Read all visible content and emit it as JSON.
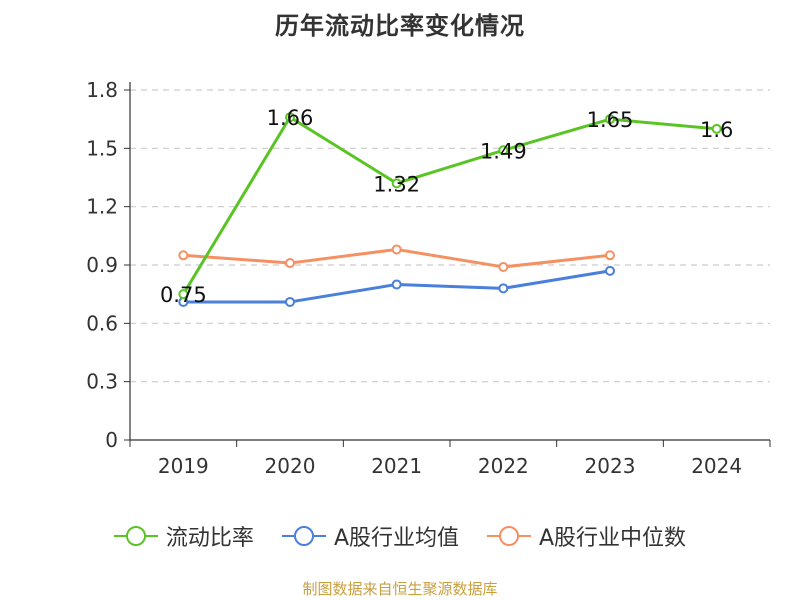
{
  "title": "历年流动比率变化情况",
  "source": "制图数据来自恒生聚源数据库",
  "colors": {
    "source_text": "#c8a040"
  },
  "chart_data": {
    "type": "line",
    "title": "历年流动比率变化情况",
    "xlabel": "",
    "ylabel": "",
    "categories": [
      "2019",
      "2020",
      "2021",
      "2022",
      "2023",
      "2024"
    ],
    "yticks": [
      "0",
      "0.3",
      "0.6",
      "0.9",
      "1.2",
      "1.5",
      "1.8"
    ],
    "ylim": [
      0,
      1.8
    ],
    "grid": true,
    "legend_position": "bottom",
    "series": [
      {
        "name": "流动比率",
        "color": "#5bc425",
        "values": [
          0.75,
          1.66,
          1.32,
          1.49,
          1.65,
          1.6
        ],
        "labels": [
          "0.75",
          "1.66",
          "1.32",
          "1.49",
          "1.65",
          "1.6"
        ]
      },
      {
        "name": "A股行业均值",
        "color": "#4a7fdc",
        "values": [
          0.71,
          0.71,
          0.8,
          0.78,
          0.87,
          null
        ],
        "labels": []
      },
      {
        "name": "A股行业中位数",
        "color": "#f59062",
        "values": [
          0.95,
          0.91,
          0.98,
          0.89,
          0.95,
          null
        ],
        "labels": []
      }
    ]
  }
}
